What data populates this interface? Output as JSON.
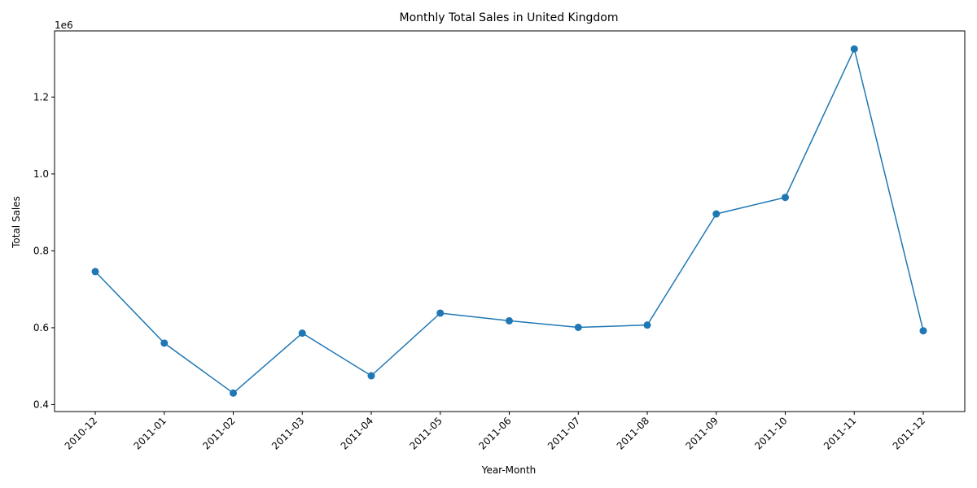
{
  "chart_data": {
    "type": "line",
    "title": "Monthly Total Sales in United Kingdom",
    "xlabel": "Year-Month",
    "ylabel": "Total Sales",
    "y_offset_text": "1e6",
    "categories": [
      "2010-12",
      "2011-01",
      "2011-02",
      "2011-03",
      "2011-04",
      "2011-05",
      "2011-06",
      "2011-07",
      "2011-08",
      "2011-09",
      "2011-10",
      "2011-11",
      "2011-12"
    ],
    "series": [
      {
        "values": [
          746000,
          560000,
          430000,
          586000,
          475000,
          638000,
          618000,
          601000,
          607000,
          896000,
          939000,
          1325000,
          592000
        ],
        "color": "#1f77b4",
        "marker": "circle"
      }
    ],
    "yticks": [
      0.4,
      0.6,
      0.8,
      1.0,
      1.2
    ],
    "ytick_labels": [
      "0.4",
      "0.6",
      "0.8",
      "1.0",
      "1.2"
    ],
    "ylim": [
      382000,
      1372000
    ],
    "grid": false,
    "legend": "none"
  }
}
